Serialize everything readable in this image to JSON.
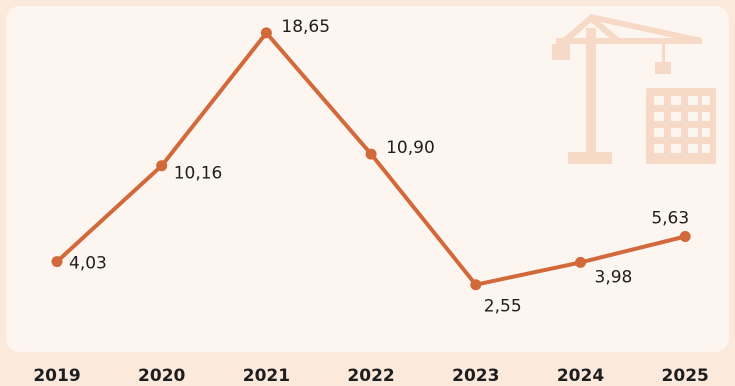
{
  "chart_data": {
    "type": "line",
    "categories": [
      "2019",
      "2020",
      "2021",
      "2022",
      "2023",
      "2024",
      "2025"
    ],
    "values": [
      4.03,
      10.16,
      18.65,
      10.9,
      2.55,
      3.98,
      5.63
    ],
    "data_labels": [
      "4,03",
      "10,16",
      "18,65",
      "10,90",
      "2,55",
      "3,98",
      "5,63"
    ],
    "ylim": [
      0,
      20
    ],
    "grid": false,
    "colors": {
      "line": "#d2693a",
      "background": "#fbe9dc",
      "panel": "#fdf6f0",
      "decoration": "#f6d9c6"
    },
    "decoration_icon": "construction-crane-building-icon"
  }
}
